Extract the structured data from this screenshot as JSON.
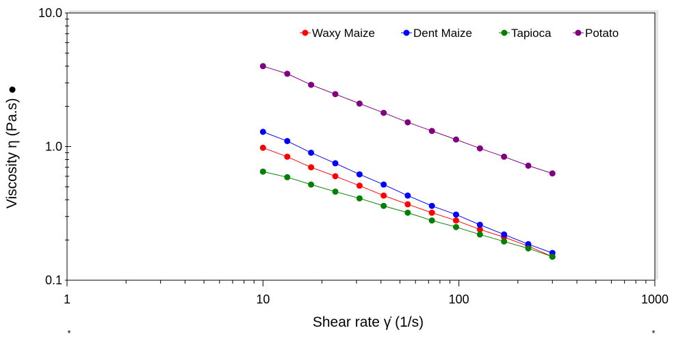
{
  "chart_data": {
    "type": "line",
    "xlabel": "Shear rate  γ̇  (1/s)",
    "ylabel": "Viscosity η  (Pa.s) ●",
    "xscale": "log",
    "yscale": "log",
    "xlim": [
      1,
      1000
    ],
    "ylim": [
      0.1,
      10.0
    ],
    "xticks": [
      "1",
      "10",
      "100",
      "1000"
    ],
    "yticks": [
      "0.1",
      "1.0",
      "10.0"
    ],
    "grid": false,
    "legend_position": "top-right",
    "footnote_marks": [
      "*",
      "*"
    ],
    "x": [
      10,
      13.3,
      17.6,
      23.4,
      31.1,
      41.3,
      54.8,
      72.8,
      96.7,
      128,
      170,
      226,
      300
    ],
    "series": [
      {
        "name": "Waxy Maize",
        "color": "#ff0000",
        "values": [
          0.98,
          0.84,
          0.7,
          0.6,
          0.51,
          0.43,
          0.37,
          0.32,
          0.28,
          0.24,
          0.21,
          0.18,
          0.15
        ]
      },
      {
        "name": "Dent Maize",
        "color": "#0000ff",
        "values": [
          1.29,
          1.1,
          0.9,
          0.75,
          0.62,
          0.52,
          0.43,
          0.36,
          0.31,
          0.26,
          0.22,
          0.186,
          0.16
        ]
      },
      {
        "name": "Tapioca",
        "color": "#008000",
        "values": [
          0.65,
          0.59,
          0.52,
          0.46,
          0.41,
          0.36,
          0.32,
          0.28,
          0.25,
          0.22,
          0.195,
          0.173,
          0.15
        ]
      },
      {
        "name": "Potato",
        "color": "#800080",
        "values": [
          4.0,
          3.51,
          2.9,
          2.47,
          2.1,
          1.79,
          1.52,
          1.31,
          1.13,
          0.97,
          0.84,
          0.72,
          0.63
        ]
      }
    ]
  }
}
